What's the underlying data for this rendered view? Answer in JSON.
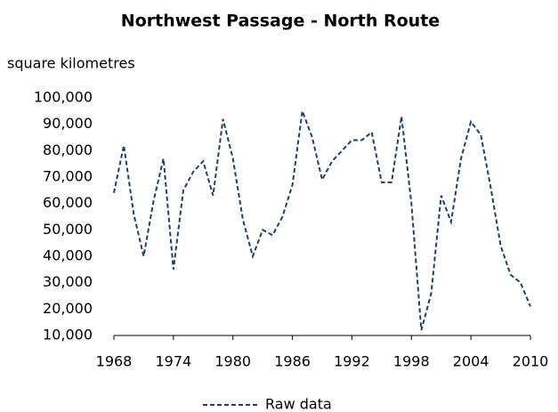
{
  "chart_data": {
    "type": "line",
    "title": "Northwest Passage - North Route",
    "y_label": "square kilometres",
    "x": [
      1968,
      1969,
      1970,
      1971,
      1972,
      1973,
      1974,
      1975,
      1976,
      1977,
      1978,
      1979,
      1980,
      1981,
      1982,
      1983,
      1984,
      1985,
      1986,
      1987,
      1988,
      1989,
      1990,
      1991,
      1992,
      1993,
      1994,
      1995,
      1996,
      1997,
      1998,
      1999,
      2000,
      2001,
      2002,
      2003,
      2004,
      2005,
      2006,
      2007,
      2008,
      2009,
      2010
    ],
    "series": [
      {
        "name": "Raw data",
        "color": "#1f3f6e",
        "dashed": true,
        "values": [
          64000,
          82000,
          56000,
          40000,
          61000,
          77000,
          35000,
          65000,
          72000,
          76000,
          63000,
          92000,
          77000,
          54000,
          40000,
          50000,
          48000,
          55000,
          67000,
          95000,
          85000,
          69000,
          76000,
          80000,
          84000,
          84000,
          87000,
          68000,
          68000,
          93000,
          60000,
          12000,
          26000,
          63000,
          53000,
          77000,
          91000,
          86000,
          66000,
          44000,
          33000,
          30000,
          21000
        ]
      }
    ],
    "xlim": [
      1968,
      2010
    ],
    "xticks": [
      1968,
      1974,
      1980,
      1986,
      1992,
      1998,
      2004,
      2010
    ],
    "ylim": [
      10000,
      100000
    ],
    "yticks": [
      {
        "value": 10000,
        "label": "10,000"
      },
      {
        "value": 20000,
        "label": "20,000"
      },
      {
        "value": 30000,
        "label": "30,000"
      },
      {
        "value": 40000,
        "label": "40,000"
      },
      {
        "value": 50000,
        "label": "50,000"
      },
      {
        "value": 60000,
        "label": "60,000"
      },
      {
        "value": 70000,
        "label": "70,000"
      },
      {
        "value": 80000,
        "label": "80,000"
      },
      {
        "value": 90000,
        "label": "90,000"
      },
      {
        "value": 100000,
        "label": "100,000"
      }
    ],
    "legend": "bottom",
    "grid": false
  }
}
